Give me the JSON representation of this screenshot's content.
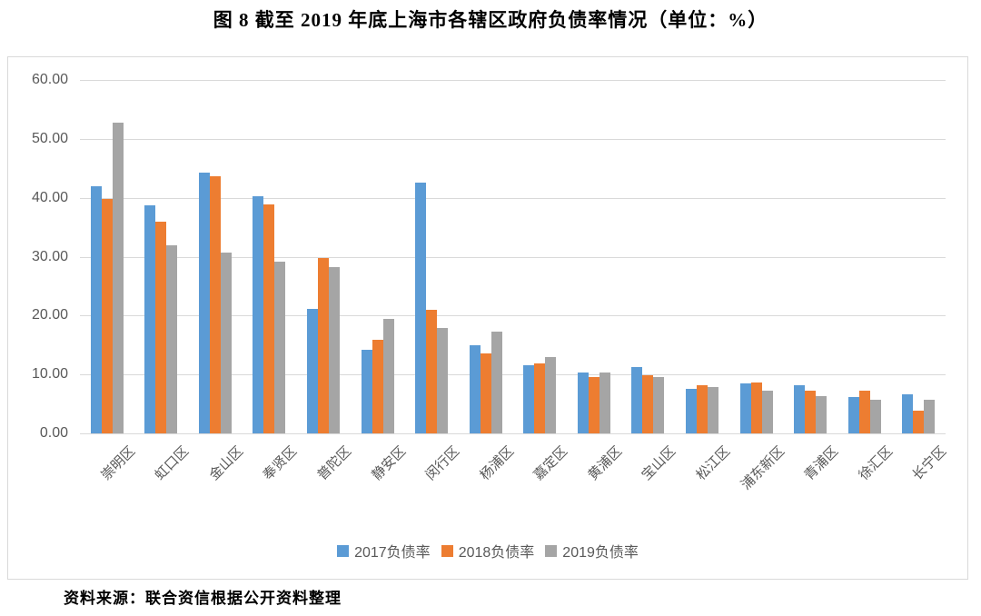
{
  "chart_data": {
    "type": "bar",
    "title": "图 8  截至 2019 年底上海市各辖区政府负债率情况（单位：%）",
    "categories": [
      "崇明区",
      "虹口区",
      "金山区",
      "奉贤区",
      "普陀区",
      "静安区",
      "闵行区",
      "杨浦区",
      "嘉定区",
      "黄浦区",
      "宝山区",
      "松江区",
      "浦东新区",
      "青浦区",
      "徐汇区",
      "长宁区"
    ],
    "series": [
      {
        "name": "2017负债率",
        "color": "#5B9BD5",
        "values": [
          42.0,
          38.7,
          44.3,
          40.2,
          21.2,
          14.2,
          42.6,
          14.9,
          11.5,
          10.4,
          11.3,
          7.5,
          8.5,
          8.2,
          6.2,
          6.6
        ]
      },
      {
        "name": "2018负债率",
        "color": "#ED7D31",
        "values": [
          39.8,
          36.0,
          43.6,
          38.9,
          29.7,
          15.9,
          20.9,
          13.6,
          11.9,
          9.5,
          9.8,
          8.2,
          8.6,
          7.2,
          7.2,
          3.9
        ]
      },
      {
        "name": "2019负债率",
        "color": "#A5A5A5",
        "values": [
          52.8,
          31.9,
          30.7,
          29.1,
          28.2,
          19.5,
          17.9,
          17.3,
          12.9,
          10.3,
          9.6,
          7.9,
          7.2,
          6.3,
          5.7,
          5.7
        ]
      }
    ],
    "ylim": [
      0,
      60
    ],
    "ytick_step": 10,
    "ytick_labels": [
      "60.00",
      "50.00",
      "40.00",
      "30.00",
      "20.00",
      "10.00",
      "0.00"
    ],
    "grid": true,
    "legend_position": "bottom",
    "plot_colors": {
      "gridline": "#d9d9d9",
      "axis_text": "#595959",
      "frame_border": "#d9d9d9"
    }
  },
  "source_note": "资料来源：联合资信根据公开资料整理"
}
